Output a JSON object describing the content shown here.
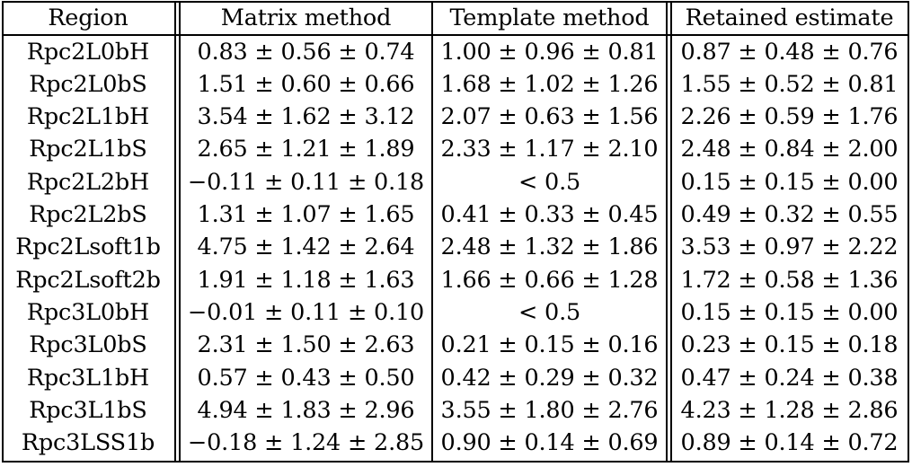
{
  "table": {
    "headers": [
      "Region",
      "Matrix method",
      "Template method",
      "Retained estimate"
    ],
    "rows": [
      [
        "Rpc2L0bH",
        "0.83 ± 0.56 ± 0.74",
        "1.00 ± 0.96 ± 0.81",
        "0.87 ± 0.48 ± 0.76"
      ],
      [
        "Rpc2L0bS",
        "1.51 ± 0.60 ± 0.66",
        "1.68 ± 1.02 ± 1.26",
        "1.55 ± 0.52 ± 0.81"
      ],
      [
        "Rpc2L1bH",
        "3.54 ± 1.62 ± 3.12",
        "2.07 ± 0.63 ± 1.56",
        "2.26 ± 0.59 ± 1.76"
      ],
      [
        "Rpc2L1bS",
        "2.65 ± 1.21 ± 1.89",
        "2.33 ± 1.17 ± 2.10",
        "2.48 ± 0.84 ± 2.00"
      ],
      [
        "Rpc2L2bH",
        "−0.11 ± 0.11 ± 0.18",
        "< 0.5",
        "0.15 ± 0.15 ± 0.00"
      ],
      [
        "Rpc2L2bS",
        "1.31 ± 1.07 ± 1.65",
        "0.41 ± 0.33 ± 0.45",
        "0.49 ± 0.32 ± 0.55"
      ],
      [
        "Rpc2Lsoft1b",
        "4.75 ± 1.42 ± 2.64",
        "2.48 ± 1.32 ± 1.86",
        "3.53 ± 0.97 ± 2.22"
      ],
      [
        "Rpc2Lsoft2b",
        "1.91 ± 1.18 ± 1.63",
        "1.66 ± 0.66 ± 1.28",
        "1.72 ± 0.58 ± 1.36"
      ],
      [
        "Rpc3L0bH",
        "−0.01 ± 0.11 ± 0.10",
        "< 0.5",
        "0.15 ± 0.15 ± 0.00"
      ],
      [
        "Rpc3L0bS",
        "2.31 ± 1.50 ± 2.63",
        "0.21 ± 0.15 ± 0.16",
        "0.23 ± 0.15 ± 0.18"
      ],
      [
        "Rpc3L1bH",
        "0.57 ± 0.43 ± 0.50",
        "0.42 ± 0.29 ± 0.32",
        "0.47 ± 0.24 ± 0.38"
      ],
      [
        "Rpc3L1bS",
        "4.94 ± 1.83 ± 2.96",
        "3.55 ± 1.80 ± 2.76",
        "4.23 ± 1.28 ± 2.86"
      ],
      [
        "Rpc3LSS1b",
        "−0.18 ± 1.24 ± 2.85",
        "0.90 ± 0.14 ± 0.69",
        "0.89 ± 0.14 ± 0.72"
      ]
    ]
  }
}
